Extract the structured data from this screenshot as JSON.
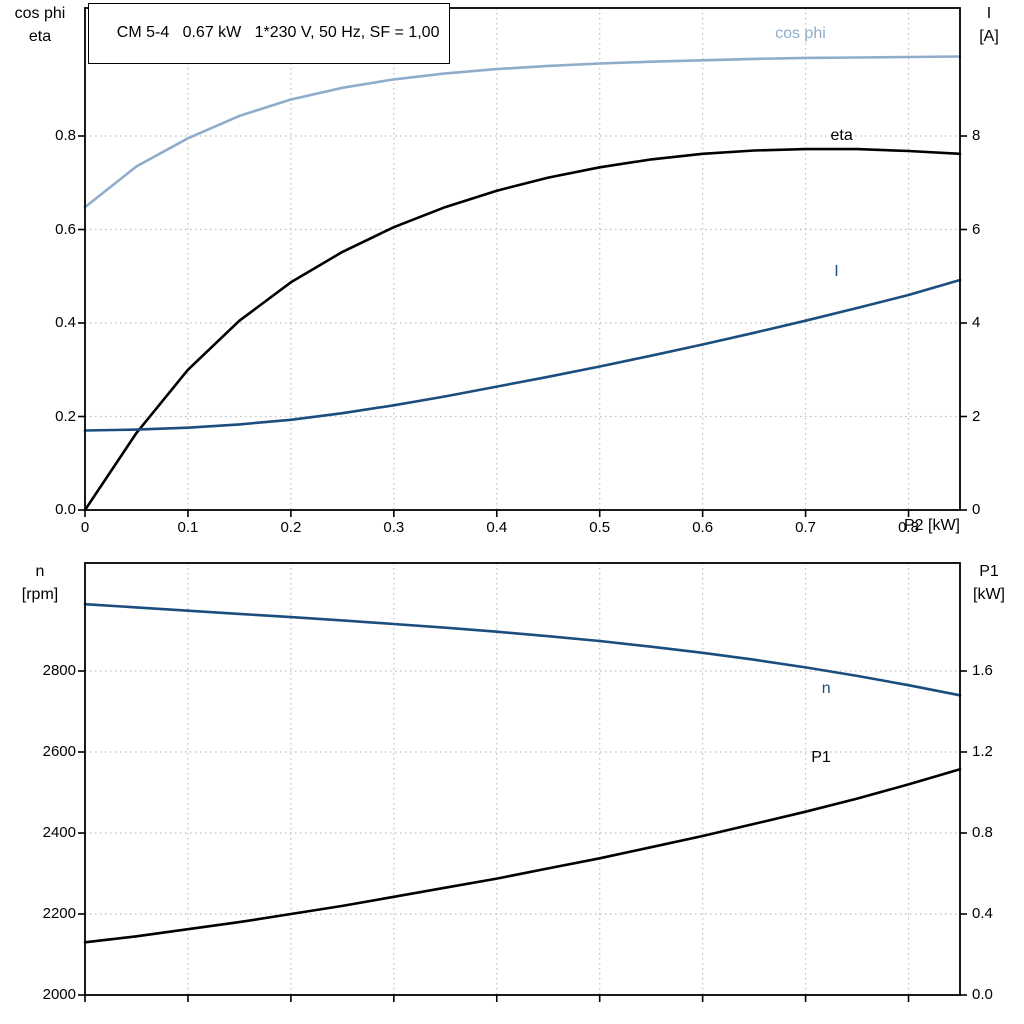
{
  "chart_data": [
    {
      "type": "line",
      "title": "CM 5-4   0.67 kW   1*230 V, 50 Hz, SF = 1,00",
      "grid": true,
      "legend_position": "inline-curve-labels",
      "x_axis": {
        "label": "P2 [kW]",
        "min": 0,
        "max": 0.85,
        "ticks": [
          0,
          0.1,
          0.2,
          0.3,
          0.4,
          0.5,
          0.6,
          0.7,
          0.8
        ],
        "tick_labels": [
          "0",
          "0.1",
          "0.2",
          "0.3",
          "0.4",
          "0.5",
          "0.6",
          "0.7",
          "0.8"
        ],
        "show_tick_labels": true
      },
      "y_left": {
        "title_lines": [
          "cos phi",
          "eta"
        ],
        "min": 0,
        "max": 1.0738,
        "ticks": [
          0,
          0.2,
          0.4,
          0.6,
          0.8
        ],
        "tick_labels": [
          "0.0",
          "0.2",
          "0.4",
          "0.6",
          "0.8"
        ]
      },
      "y_right": {
        "title_lines": [
          "I",
          "[A]"
        ],
        "min": 0,
        "max": 10.738,
        "ticks": [
          0,
          2,
          4,
          6,
          8
        ],
        "tick_labels": [
          "0",
          "2",
          "4",
          "6",
          "8"
        ]
      },
      "series": [
        {
          "name": "cos phi",
          "axis": "left",
          "color": "#8fadcb",
          "label_anchor": [
            0.695,
            1.018
          ],
          "x": [
            0,
            0.05,
            0.1,
            0.15,
            0.2,
            0.25,
            0.3,
            0.35,
            0.4,
            0.45,
            0.5,
            0.55,
            0.6,
            0.65,
            0.7,
            0.75,
            0.8,
            0.85
          ],
          "y": [
            0.648,
            0.735,
            0.795,
            0.843,
            0.878,
            0.903,
            0.921,
            0.934,
            0.943,
            0.95,
            0.955,
            0.959,
            0.962,
            0.965,
            0.967,
            0.968,
            0.969,
            0.97
          ]
        },
        {
          "name": "eta",
          "axis": "left",
          "color": "#000000",
          "label_anchor": [
            0.735,
            0.8
          ],
          "x": [
            0,
            0.05,
            0.1,
            0.15,
            0.2,
            0.25,
            0.3,
            0.35,
            0.4,
            0.45,
            0.5,
            0.55,
            0.6,
            0.65,
            0.7,
            0.75,
            0.8,
            0.85
          ],
          "y": [
            0.0,
            0.165,
            0.3,
            0.405,
            0.487,
            0.552,
            0.605,
            0.648,
            0.683,
            0.711,
            0.733,
            0.75,
            0.762,
            0.769,
            0.772,
            0.772,
            0.768,
            0.762
          ]
        },
        {
          "name": "I",
          "axis": "right",
          "color": "#1b4d7e",
          "label_anchor": [
            0.73,
            5.1
          ],
          "x": [
            0,
            0.05,
            0.1,
            0.15,
            0.2,
            0.25,
            0.3,
            0.35,
            0.4,
            0.45,
            0.5,
            0.55,
            0.6,
            0.65,
            0.7,
            0.75,
            0.8,
            0.85
          ],
          "y": [
            1.7,
            1.72,
            1.76,
            1.83,
            1.93,
            2.07,
            2.24,
            2.43,
            2.64,
            2.85,
            3.07,
            3.3,
            3.54,
            3.79,
            4.05,
            4.32,
            4.6,
            4.92
          ]
        }
      ]
    },
    {
      "type": "line",
      "title": "",
      "grid": true,
      "legend_position": "inline-curve-labels",
      "x_axis": {
        "label": "",
        "min": 0,
        "max": 0.85,
        "ticks": [
          0,
          0.1,
          0.2,
          0.3,
          0.4,
          0.5,
          0.6,
          0.7,
          0.8
        ],
        "tick_labels": [],
        "show_tick_labels": false
      },
      "y_left": {
        "title_lines": [
          "n",
          "[rpm]"
        ],
        "min": 2000,
        "max": 3066.7,
        "ticks": [
          2000,
          2200,
          2400,
          2600,
          2800
        ],
        "tick_labels": [
          "2000",
          "2200",
          "2400",
          "2600",
          "2800"
        ]
      },
      "y_right": {
        "title_lines": [
          "P1",
          "[kW]"
        ],
        "min": 0,
        "max": 2.1333,
        "ticks": [
          0,
          0.4,
          0.8,
          1.2,
          1.6
        ],
        "tick_labels": [
          "0.0",
          "0.4",
          "0.8",
          "1.2",
          "1.6"
        ]
      },
      "series": [
        {
          "name": "n",
          "axis": "left",
          "color": "#1b4d7e",
          "label_anchor": [
            0.72,
            2755
          ],
          "x": [
            0,
            0.05,
            0.1,
            0.15,
            0.2,
            0.25,
            0.3,
            0.35,
            0.4,
            0.45,
            0.5,
            0.55,
            0.6,
            0.65,
            0.7,
            0.75,
            0.8,
            0.85
          ],
          "y": [
            2965,
            2957,
            2949,
            2941,
            2933,
            2925,
            2916,
            2907,
            2897,
            2886,
            2874,
            2860,
            2845,
            2828,
            2809,
            2788,
            2765,
            2740
          ]
        },
        {
          "name": "P1",
          "axis": "right",
          "color": "#000000",
          "label_anchor": [
            0.715,
            1.17
          ],
          "x": [
            0,
            0.05,
            0.1,
            0.15,
            0.2,
            0.25,
            0.3,
            0.35,
            0.4,
            0.45,
            0.5,
            0.55,
            0.6,
            0.65,
            0.7,
            0.75,
            0.8,
            0.85
          ],
          "y": [
            0.26,
            0.29,
            0.325,
            0.36,
            0.4,
            0.44,
            0.485,
            0.53,
            0.575,
            0.625,
            0.675,
            0.73,
            0.785,
            0.845,
            0.905,
            0.97,
            1.04,
            1.115
          ]
        }
      ]
    }
  ]
}
